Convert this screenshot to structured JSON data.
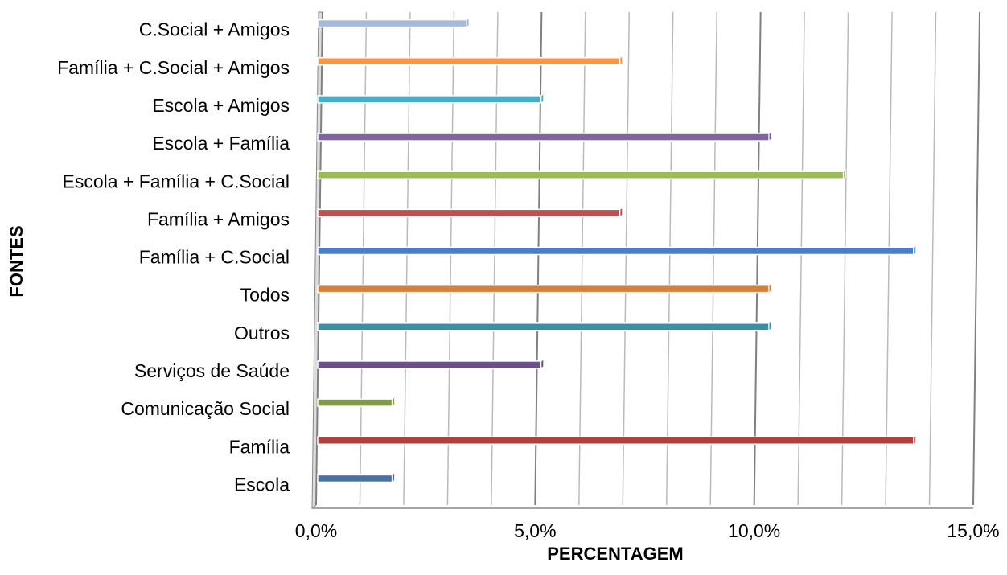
{
  "chart_data": {
    "type": "bar",
    "orientation": "horizontal",
    "x_label": "PERCENTAGEM",
    "y_label": "FONTES",
    "categories": [
      "Escola",
      "Família",
      "Comunicação Social",
      "Serviços de Saúde",
      "Outros",
      "Todos",
      "Família + C.Social",
      "Família + Amigos",
      "Escola + Família + C.Social",
      "Escola + Família",
      "Escola + Amigos",
      "Família + C.Social + Amigos",
      "C.Social + Amigos"
    ],
    "values": [
      1.7,
      13.6,
      1.7,
      5.1,
      10.3,
      10.3,
      13.6,
      6.9,
      12.0,
      10.3,
      5.1,
      6.9,
      3.4
    ],
    "colors": [
      "#4a6fa5",
      "#b2413d",
      "#7f9a48",
      "#6c4f8a",
      "#3a8fa6",
      "#d6813a",
      "#4a7ec8",
      "#c0504d",
      "#9bbb59",
      "#8064a2",
      "#4bacc6",
      "#f79646",
      "#a6b9dc"
    ],
    "xlim": [
      0,
      15
    ],
    "xticks": [
      {
        "value": 0,
        "label": "0,0%"
      },
      {
        "value": 5,
        "label": "5,0%"
      },
      {
        "value": 10,
        "label": "10,0%"
      },
      {
        "value": 15,
        "label": "15,0%"
      }
    ],
    "minor_gridlines": [
      1,
      2,
      3,
      4,
      6,
      7,
      8,
      9,
      11,
      12,
      13,
      14
    ],
    "grid": true
  }
}
